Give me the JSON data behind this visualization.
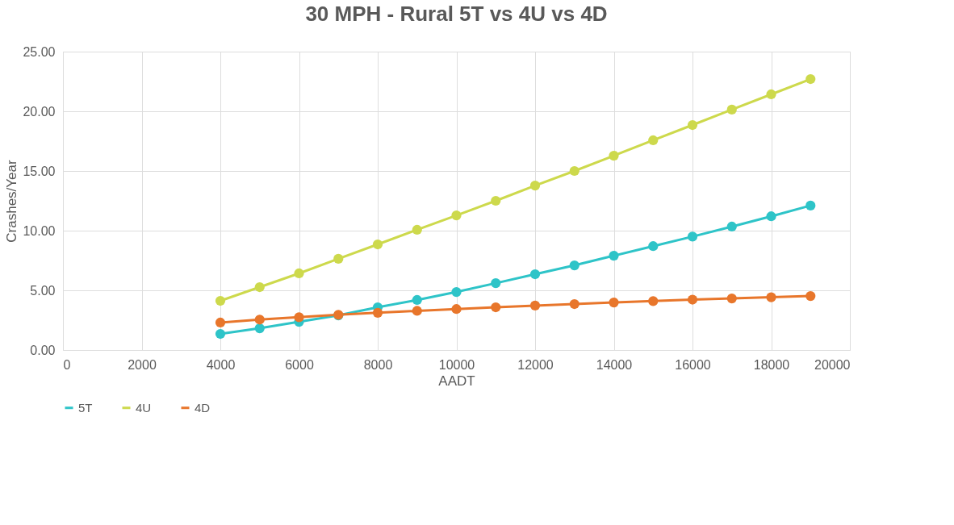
{
  "chart_data": {
    "type": "line",
    "title": "30 MPH - Rural 5T vs 4U vs 4D",
    "xlabel": "AADT",
    "ylabel": "Crashes/Year",
    "x": [
      4000,
      5000,
      6000,
      7000,
      8000,
      9000,
      10000,
      11000,
      12000,
      13000,
      14000,
      15000,
      16000,
      17000,
      18000,
      19000
    ],
    "series": [
      {
        "name": "5T",
        "color": "#2ec4c8",
        "values": [
          1.35,
          1.82,
          2.36,
          2.9,
          3.58,
          4.19,
          4.86,
          5.6,
          6.35,
          7.09,
          7.9,
          8.7,
          9.5,
          10.34,
          11.2,
          12.1
        ]
      },
      {
        "name": "4U",
        "color": "#cdd94c",
        "values": [
          4.12,
          5.27,
          6.42,
          7.64,
          8.85,
          10.07,
          11.28,
          12.5,
          13.78,
          15.0,
          16.28,
          17.57,
          18.85,
          20.14,
          21.42,
          22.7
        ]
      },
      {
        "name": "4D",
        "color": "#e8762b",
        "values": [
          2.3,
          2.55,
          2.75,
          2.95,
          3.12,
          3.28,
          3.43,
          3.58,
          3.72,
          3.85,
          3.98,
          4.1,
          4.22,
          4.32,
          4.42,
          4.52
        ]
      }
    ],
    "xlim": [
      0,
      20000
    ],
    "xticks": [
      0,
      2000,
      4000,
      6000,
      8000,
      10000,
      12000,
      14000,
      16000,
      18000,
      20000
    ],
    "ylim": [
      0,
      25
    ],
    "yticks": [
      {
        "value": 0,
        "label": "0.00"
      },
      {
        "value": 5,
        "label": "5.00"
      },
      {
        "value": 10,
        "label": "10.00"
      },
      {
        "value": 15,
        "label": "15.00"
      },
      {
        "value": 20,
        "label": "20.00"
      },
      {
        "value": 25,
        "label": "25.00"
      }
    ],
    "grid": true,
    "legend": "bottom",
    "marker": "circle",
    "line_style": "solid"
  }
}
